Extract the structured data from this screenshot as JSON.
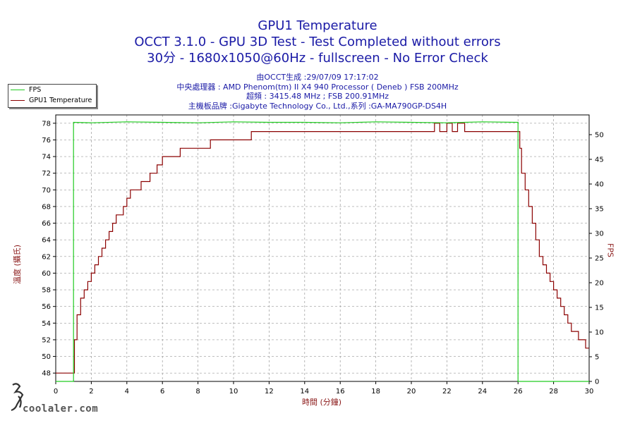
{
  "chart": {
    "title": "GPU1 Temperature",
    "subtitle1": "OCCT 3.1.0 - GPU 3D Test - Test Completed without errors",
    "subtitle2": "30分 - 1680x1050@60Hz - fullscreen - No Error Check",
    "info1": "由OCCT生成 :29/07/09 17:17:02",
    "info2": "中央處理器 : AMD Phenom(tm) II X4 940 Processor ( Deneb ) FSB 200MHz",
    "info3": "超頻 : 3415.48 MHz ; FSB 200.91MHz",
    "info4": "主機板品牌 :Gigabyte Technology Co., Ltd.,系列 :GA-MA790GP-DS4H",
    "xlabel": "時間 (分鐘)",
    "ylabel": "溫度 (攝氏)",
    "y2label": "FPS",
    "legend": [
      "FPS",
      "GPU1 Temperature"
    ],
    "watermark": "coolaler.com",
    "colors": {
      "temperature": "#8b0000",
      "fps": "#22cc22",
      "title": "#1a1aa6",
      "axis_label": "#8b1a1a"
    }
  },
  "chart_data": {
    "type": "line",
    "title": "GPU1 Temperature",
    "xlabel": "時間 (分鐘)",
    "ylabel": "溫度 (攝氏)",
    "y2label": "FPS",
    "xlim": [
      0,
      30
    ],
    "ylim": [
      47,
      79
    ],
    "y2lim": [
      0,
      54
    ],
    "xticks": [
      0,
      2,
      4,
      6,
      8,
      10,
      12,
      14,
      16,
      18,
      20,
      22,
      24,
      26,
      28,
      30
    ],
    "yticks": [
      48,
      50,
      52,
      54,
      56,
      58,
      60,
      62,
      64,
      66,
      68,
      70,
      72,
      74,
      76,
      78
    ],
    "y2ticks": [
      0,
      5,
      10,
      15,
      20,
      25,
      30,
      35,
      40,
      45,
      50
    ],
    "grid": true,
    "legend_position": "top-left",
    "series": [
      {
        "name": "GPU1 Temperature",
        "axis": "left",
        "x": [
          0,
          1.0,
          1.05,
          1.2,
          1.4,
          1.6,
          1.8,
          2.0,
          2.2,
          2.4,
          2.6,
          2.8,
          3.0,
          3.2,
          3.4,
          3.6,
          3.8,
          4.0,
          4.2,
          4.5,
          4.8,
          5.0,
          5.3,
          5.7,
          6.0,
          6.3,
          6.6,
          7.0,
          7.5,
          8.0,
          8.3,
          8.7,
          9.0,
          10.0,
          10.5,
          11.0,
          11.5,
          12.0,
          15.0,
          18.0,
          20.0,
          21.0,
          21.3,
          21.6,
          22.0,
          22.3,
          22.6,
          23.0,
          25.0,
          26.0,
          26.1,
          26.2,
          26.4,
          26.6,
          26.8,
          27.0,
          27.2,
          27.4,
          27.6,
          27.8,
          28.0,
          28.2,
          28.4,
          28.6,
          28.8,
          29.0,
          29.2,
          29.4,
          29.6,
          29.8,
          30.0
        ],
        "y": [
          48,
          48,
          52,
          55,
          57,
          58,
          59,
          60,
          61,
          62,
          63,
          64,
          65,
          66,
          67,
          67,
          68,
          69,
          70,
          70,
          71,
          71,
          72,
          73,
          74,
          74,
          74,
          75,
          75,
          75,
          75,
          76,
          76,
          76,
          76,
          77,
          77,
          77,
          77,
          77,
          77,
          77,
          78,
          77,
          78,
          77,
          78,
          77,
          77,
          77,
          75,
          72,
          70,
          68,
          66,
          64,
          62,
          61,
          60,
          59,
          58,
          57,
          56,
          55,
          54,
          53,
          53,
          52,
          52,
          51,
          51
        ]
      },
      {
        "name": "FPS",
        "axis": "right",
        "x": [
          0,
          1.0,
          1.0,
          2,
          4,
          6,
          8,
          10,
          12,
          14,
          16,
          18,
          20,
          22,
          24,
          25.9,
          26.0,
          26.0,
          30
        ],
        "y": [
          0,
          0,
          52.5,
          52.4,
          52.6,
          52.5,
          52.4,
          52.6,
          52.5,
          52.5,
          52.4,
          52.6,
          52.5,
          52.4,
          52.6,
          52.5,
          52.5,
          0,
          0
        ]
      }
    ]
  }
}
